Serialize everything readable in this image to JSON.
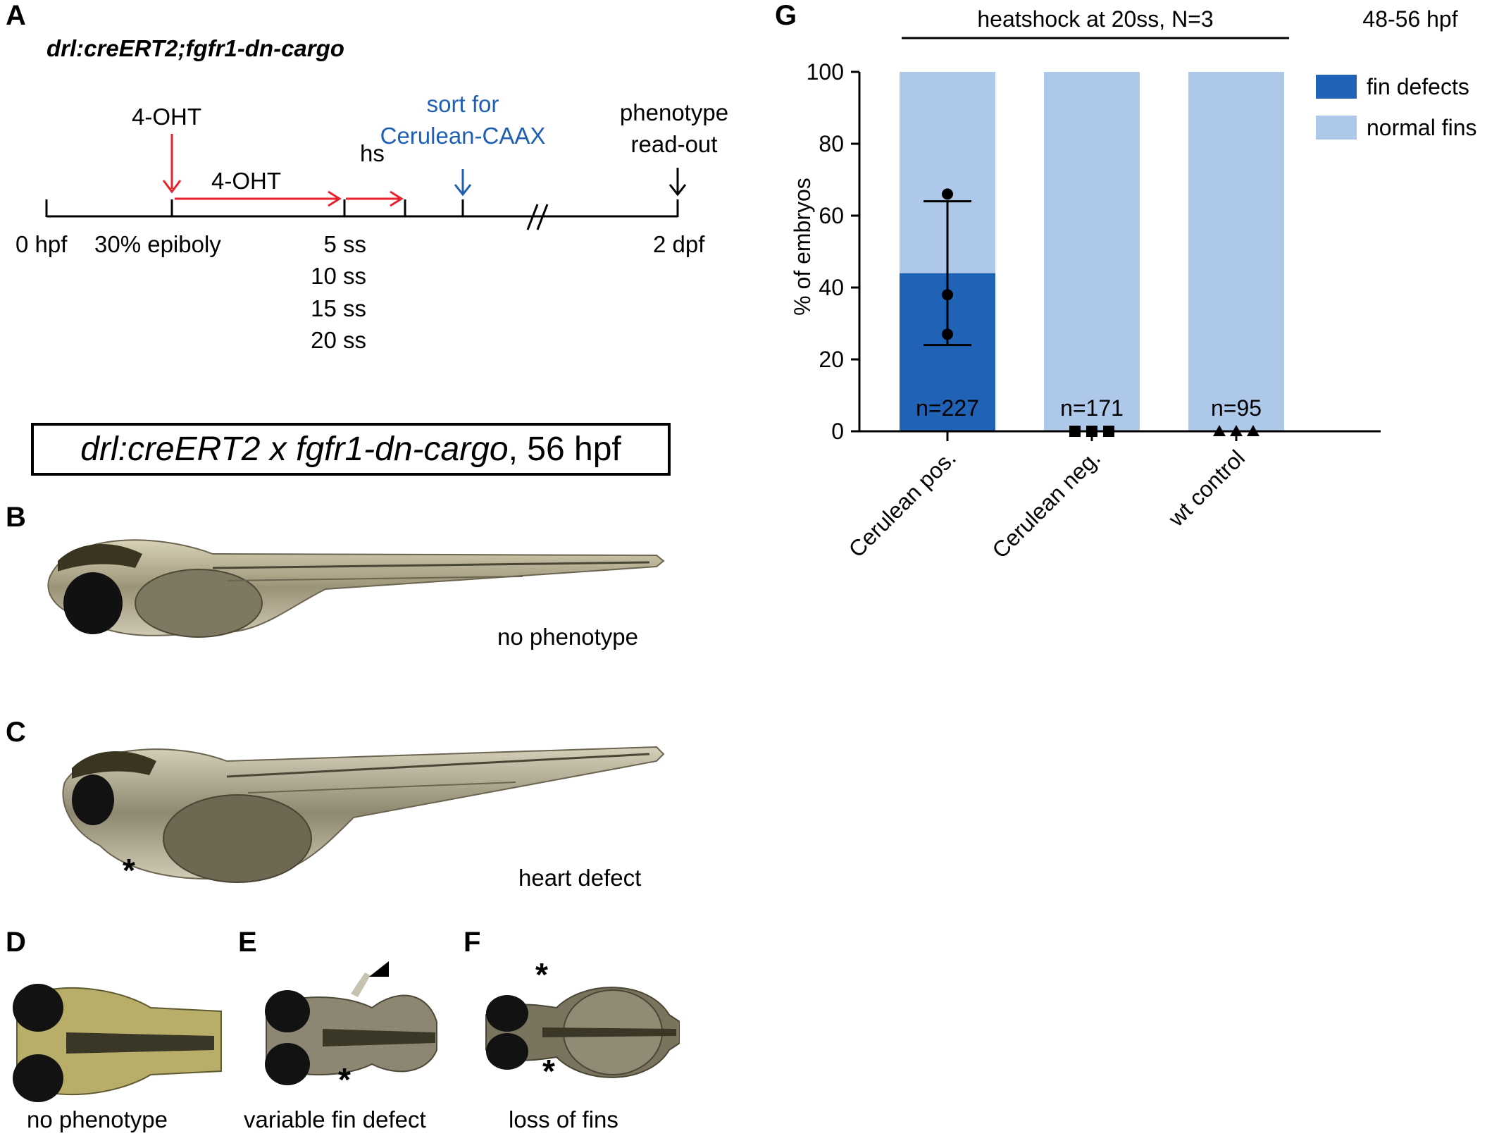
{
  "panel_letters": {
    "A": "A",
    "B": "B",
    "C": "C",
    "D": "D",
    "E": "E",
    "F": "F",
    "G": "G"
  },
  "panel_a": {
    "genotype": "drl:creERT2;fgfr1-dn-cargo",
    "events": {
      "oht_drop": "4-OHT",
      "oht_interval": "4-OHT",
      "heatshock": "hs",
      "sort_line1": "sort for",
      "sort_line2": "Cerulean-CAAX",
      "readout_line1": "phenotype",
      "readout_line2": "read-out"
    },
    "axis_labels": {
      "start": "0 hpf",
      "epiboly": "30% epiboly",
      "somites": [
        "5 ss",
        "10 ss",
        "15 ss",
        "20 ss"
      ],
      "end": "2 dpf"
    },
    "colors": {
      "red": "#e8212b",
      "blue": "#1f5fb4",
      "black": "#000000"
    }
  },
  "cross_title": {
    "italic": "drl:creERT2 x fgfr1-dn-cargo",
    "rest": ", 56 hpf"
  },
  "panel_b": {
    "caption": "no phenotype"
  },
  "panel_c": {
    "caption": "heart defect",
    "marker": "*"
  },
  "panel_d": {
    "caption": "no phenotype"
  },
  "panel_e": {
    "caption": "variable fin defect",
    "marker": "*"
  },
  "panel_f": {
    "caption": "loss of fins",
    "marker": "*"
  },
  "chart_data": {
    "type": "bar",
    "header": "heatshock at 20ss, N=3",
    "time_label": "48-56 hpf",
    "ylabel": "% of embryos",
    "ylim": [
      0,
      100
    ],
    "yticks": [
      0,
      20,
      40,
      60,
      80,
      100
    ],
    "categories": [
      "Cerulean pos.",
      "Cerulean neg.",
      "wt control"
    ],
    "n_labels": [
      "n=227",
      "n=171",
      "n=95"
    ],
    "series": [
      {
        "name": "fin defects",
        "values": [
          44,
          0,
          0
        ],
        "color": "#2062b5"
      },
      {
        "name": "normal fins",
        "values": [
          56,
          100,
          100
        ],
        "color": "#adc8e8"
      }
    ],
    "error_bar": {
      "category": "Cerulean pos.",
      "mean": 44,
      "low": 24,
      "high": 64
    },
    "replicate_points": [
      {
        "category": "Cerulean pos.",
        "marker": "circle",
        "values": [
          66,
          38,
          27
        ]
      },
      {
        "category": "Cerulean neg.",
        "marker": "square",
        "values": [
          0,
          0,
          0
        ]
      },
      {
        "category": "wt control",
        "marker": "triangle",
        "values": [
          0,
          0,
          0
        ]
      }
    ],
    "legend_position": "top-right",
    "grid": false
  }
}
